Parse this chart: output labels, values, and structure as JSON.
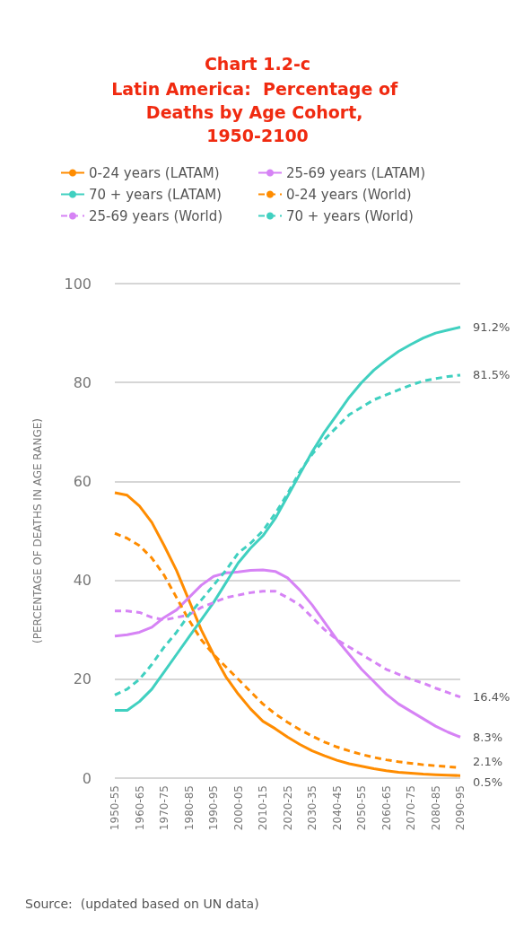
{
  "chart_data": {
    "type": "line",
    "title": "Chart 1.2-c",
    "subtitle": "Latin America:  Percentage of Deaths by Age Cohort, 1950-2100",
    "ylabel": "(PERCENTAGE OF DEATHS IN AGE RANGE)",
    "categories": [
      "1950-55",
      null,
      "1960-65",
      null,
      "1970-75",
      null,
      "1980-85",
      null,
      "1990-95",
      null,
      "2000-05",
      null,
      "2010-15",
      null,
      "2020-25",
      null,
      "2030-35",
      null,
      "2040-45",
      null,
      "2050-55",
      null,
      "2060-65",
      null,
      "2070-75",
      null,
      "2080-85",
      null,
      "2090-95"
    ],
    "series": [
      {
        "name": "0-24 years (LATAM)",
        "color": "#ff8c00",
        "line_style": "solid",
        "values": [
          57.7,
          57.2,
          55,
          51.7,
          47,
          42,
          36,
          30,
          25,
          20.5,
          17,
          14,
          11.5,
          10,
          8.3,
          6.8,
          5.5,
          4.5,
          3.6,
          2.9,
          2.4,
          1.9,
          1.5,
          1.2,
          1.0,
          0.8,
          0.7,
          0.6,
          0.5
        ],
        "value_labels": [
          null,
          null,
          null,
          null,
          null,
          null,
          null,
          null,
          null,
          null,
          null,
          null,
          null,
          null,
          null,
          null,
          null,
          null,
          null,
          null,
          null,
          null,
          null,
          null,
          null,
          null,
          null,
          null,
          "0.5%"
        ]
      },
      {
        "name": "25-69 years (LATAM)",
        "color": "#d683f5",
        "line_style": "solid",
        "values": [
          28.7,
          29,
          29.5,
          30.5,
          32.5,
          34,
          36.5,
          39,
          40.8,
          41.5,
          41.7,
          42,
          42.1,
          41.8,
          40.5,
          38,
          35,
          31.5,
          28,
          25,
          22,
          19.5,
          17,
          15,
          13.5,
          12,
          10.5,
          9.3,
          8.3
        ],
        "value_labels": [
          null,
          null,
          null,
          null,
          null,
          null,
          null,
          null,
          null,
          null,
          null,
          null,
          null,
          null,
          null,
          null,
          null,
          null,
          null,
          null,
          null,
          null,
          null,
          null,
          null,
          null,
          null,
          null,
          "8.3%"
        ]
      },
      {
        "name": "70 + years (LATAM)",
        "color": "#40d0c0",
        "line_style": "solid",
        "values": [
          13.7,
          13.7,
          15.5,
          18,
          21.5,
          25,
          28.5,
          32,
          35.5,
          39.5,
          43.5,
          46.5,
          49,
          52.5,
          57,
          61.5,
          66,
          70,
          73.5,
          77,
          80,
          82.5,
          84.5,
          86.3,
          87.7,
          89,
          90,
          90.6,
          91.2
        ],
        "value_labels": [
          null,
          null,
          null,
          null,
          null,
          null,
          null,
          null,
          null,
          null,
          null,
          null,
          null,
          null,
          null,
          null,
          null,
          null,
          null,
          null,
          null,
          null,
          null,
          null,
          null,
          null,
          null,
          null,
          "91.2%"
        ]
      },
      {
        "name": "0-24 years (World)",
        "color": "#ff8c00",
        "line_style": "dashed",
        "values": [
          49.5,
          48.5,
          47,
          44.5,
          41,
          36.5,
          32,
          28,
          25,
          22.5,
          20,
          17.5,
          15,
          13,
          11.3,
          9.8,
          8.5,
          7.3,
          6.3,
          5.5,
          4.8,
          4.2,
          3.7,
          3.3,
          3.0,
          2.7,
          2.5,
          2.3,
          2.1
        ],
        "value_labels": [
          null,
          null,
          null,
          null,
          null,
          null,
          null,
          null,
          null,
          null,
          null,
          null,
          null,
          null,
          null,
          null,
          null,
          null,
          null,
          null,
          null,
          null,
          null,
          null,
          null,
          null,
          null,
          null,
          "2.1%"
        ]
      },
      {
        "name": "25-69 years (World)",
        "color": "#d683f5",
        "line_style": "dashed",
        "values": [
          33.8,
          33.8,
          33.5,
          32.5,
          32,
          32.5,
          33,
          34.5,
          35.5,
          36.5,
          37,
          37.5,
          37.8,
          37.8,
          36.5,
          35,
          32.5,
          30,
          28,
          26.5,
          25,
          23.5,
          22,
          21,
          20,
          19.2,
          18.2,
          17.3,
          16.4
        ],
        "value_labels": [
          null,
          null,
          null,
          null,
          null,
          null,
          null,
          null,
          null,
          null,
          null,
          null,
          null,
          null,
          null,
          null,
          null,
          null,
          null,
          null,
          null,
          null,
          null,
          null,
          null,
          null,
          null,
          null,
          "16.4%"
        ]
      },
      {
        "name": "70 + years (World)",
        "color": "#40d0c0",
        "line_style": "dashed",
        "values": [
          16.8,
          18,
          20,
          23,
          26.5,
          29.5,
          33,
          36,
          39,
          42,
          45.5,
          47.5,
          50,
          53.5,
          57.5,
          62,
          65.5,
          68.5,
          71,
          73.5,
          75,
          76.5,
          77.5,
          78.5,
          79.5,
          80.3,
          80.8,
          81.2,
          81.5
        ],
        "value_labels": [
          null,
          null,
          null,
          null,
          null,
          null,
          null,
          null,
          null,
          null,
          null,
          null,
          null,
          null,
          null,
          null,
          null,
          null,
          null,
          null,
          null,
          null,
          null,
          null,
          null,
          null,
          null,
          null,
          "81.5%"
        ]
      }
    ],
    "ylim": [
      0,
      100
    ],
    "yticks": [
      0,
      20,
      40,
      60,
      80,
      100
    ],
    "grid": "y",
    "legend": "top",
    "marker": "none",
    "annotations": [
      "Source:  (updated based on UN data)"
    ]
  }
}
